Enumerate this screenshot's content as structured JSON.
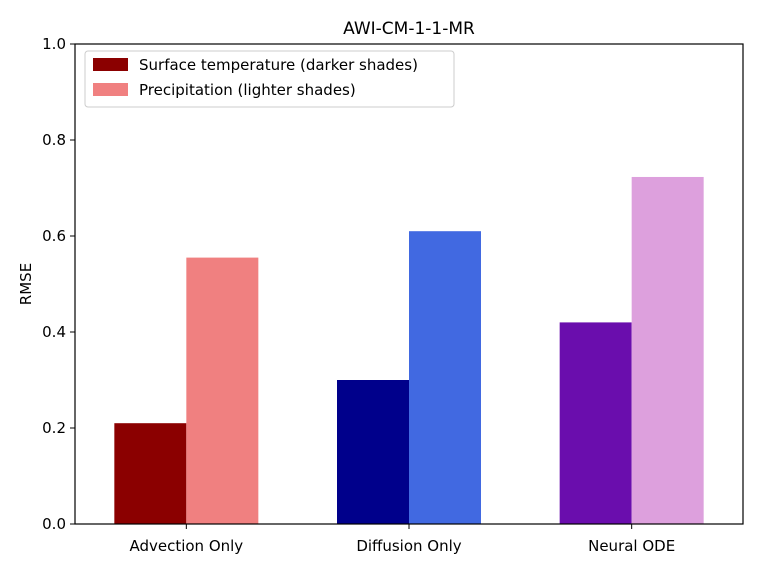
{
  "chart_data": {
    "type": "bar",
    "title": "AWI-CM-1-1-MR",
    "xlabel": "",
    "ylabel": "RMSE",
    "ylim": [
      0.0,
      1.0
    ],
    "yticks": [
      "0.0",
      "0.2",
      "0.4",
      "0.6",
      "0.8",
      "1.0"
    ],
    "categories": [
      "Advection Only",
      "Diffusion Only",
      "Neural ODE"
    ],
    "series": [
      {
        "name": "Surface temperature (darker shades)",
        "values": [
          0.21,
          0.3,
          0.42
        ],
        "colors": [
          "#8b0000",
          "#00008b",
          "#6a0dad"
        ],
        "legend_color": "#8b0000"
      },
      {
        "name": "Precipitation (lighter shades)",
        "values": [
          0.555,
          0.61,
          0.723
        ],
        "colors": [
          "#f08080",
          "#4169e1",
          "#dda0dd"
        ],
        "legend_color": "#f08080"
      }
    ],
    "legend_position": "top-left"
  }
}
